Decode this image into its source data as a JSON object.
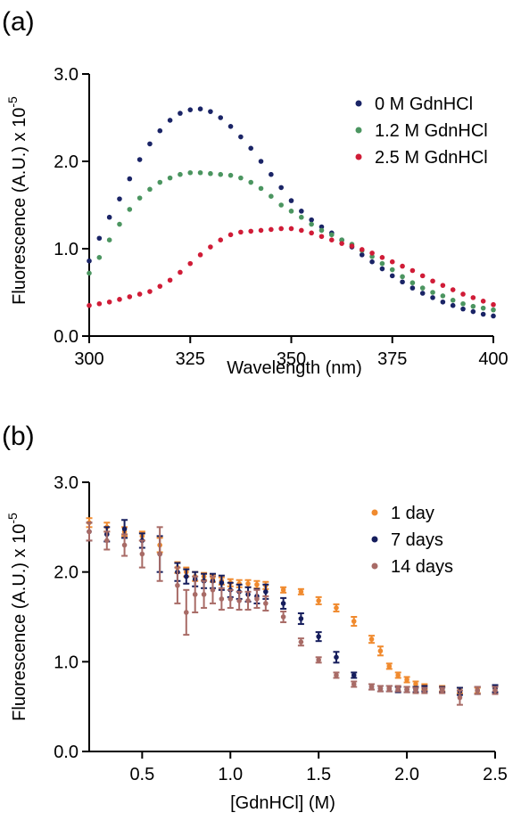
{
  "panels": [
    {
      "label": "(a)"
    },
    {
      "label": "(b)"
    }
  ],
  "chart_data": [
    {
      "type": "scatter",
      "title": "",
      "xlabel": "Wavelength (nm)",
      "ylabel": "Fluorescence (A.U.) x 10",
      "ylabel_exponent": "-5",
      "xlim": [
        300,
        400
      ],
      "ylim": [
        0,
        3
      ],
      "xticks": [
        "300",
        "325",
        "350",
        "375",
        "400"
      ],
      "yticks": [
        "0.0",
        "1.0",
        "2.0",
        "3.0"
      ],
      "legend_position": "top-right",
      "grid": false,
      "series": [
        {
          "name": "0 M GdnHCl",
          "color": "#1a2466",
          "x": [
            300,
            302.5,
            305,
            307.5,
            310,
            312.5,
            315,
            317.5,
            320,
            322.5,
            325,
            327.5,
            330,
            332.5,
            335,
            337.5,
            340,
            342.5,
            345,
            347.5,
            350,
            352.5,
            355,
            357.5,
            360,
            362.5,
            365,
            367.5,
            370,
            372.5,
            375,
            377.5,
            380,
            382.5,
            385,
            387.5,
            390,
            392.5,
            395,
            397.5,
            400
          ],
          "y": [
            0.86,
            1.12,
            1.36,
            1.57,
            1.8,
            2.02,
            2.2,
            2.35,
            2.47,
            2.55,
            2.59,
            2.6,
            2.57,
            2.5,
            2.4,
            2.28,
            2.15,
            2.0,
            1.85,
            1.7,
            1.55,
            1.43,
            1.33,
            1.25,
            1.18,
            1.1,
            1.02,
            0.93,
            0.85,
            0.77,
            0.69,
            0.62,
            0.55,
            0.49,
            0.44,
            0.39,
            0.35,
            0.31,
            0.28,
            0.25,
            0.23
          ]
        },
        {
          "name": "1.2 M GdnHCl",
          "color": "#4b9560",
          "x": [
            300,
            302.5,
            305,
            307.5,
            310,
            312.5,
            315,
            317.5,
            320,
            322.5,
            325,
            327.5,
            330,
            332.5,
            335,
            337.5,
            340,
            342.5,
            345,
            347.5,
            350,
            352.5,
            355,
            357.5,
            360,
            362.5,
            365,
            367.5,
            370,
            372.5,
            375,
            377.5,
            380,
            382.5,
            385,
            387.5,
            390,
            392.5,
            395,
            397.5,
            400
          ],
          "y": [
            0.72,
            0.9,
            1.1,
            1.28,
            1.45,
            1.58,
            1.68,
            1.76,
            1.81,
            1.85,
            1.87,
            1.87,
            1.86,
            1.85,
            1.84,
            1.81,
            1.76,
            1.69,
            1.6,
            1.5,
            1.43,
            1.36,
            1.28,
            1.21,
            1.16,
            1.1,
            1.05,
            0.98,
            0.91,
            0.83,
            0.76,
            0.68,
            0.61,
            0.55,
            0.5,
            0.46,
            0.41,
            0.37,
            0.34,
            0.32,
            0.3
          ]
        },
        {
          "name": "2.5 M GdnHCl",
          "color": "#d01c37",
          "x": [
            300,
            302.5,
            305,
            307.5,
            310,
            312.5,
            315,
            317.5,
            320,
            322.5,
            325,
            327.5,
            330,
            332.5,
            335,
            337.5,
            340,
            342.5,
            345,
            347.5,
            350,
            352.5,
            355,
            357.5,
            360,
            362.5,
            365,
            367.5,
            370,
            372.5,
            375,
            377.5,
            380,
            382.5,
            385,
            387.5,
            390,
            392.5,
            395,
            397.5,
            400
          ],
          "y": [
            0.35,
            0.37,
            0.39,
            0.42,
            0.45,
            0.48,
            0.51,
            0.57,
            0.64,
            0.73,
            0.83,
            0.93,
            1.02,
            1.1,
            1.16,
            1.19,
            1.2,
            1.21,
            1.22,
            1.23,
            1.23,
            1.21,
            1.18,
            1.14,
            1.1,
            1.06,
            1.03,
            0.99,
            0.95,
            0.9,
            0.85,
            0.8,
            0.75,
            0.69,
            0.63,
            0.58,
            0.53,
            0.48,
            0.44,
            0.4,
            0.36
          ]
        }
      ]
    },
    {
      "type": "scatter",
      "title": "",
      "xlabel": "[GdnHCl] (M)",
      "ylabel": "Fluorescence (A.U.) x 10",
      "ylabel_exponent": "-5",
      "xlim": [
        0.2,
        2.5
      ],
      "ylim": [
        0,
        3
      ],
      "xticks": [
        "0.5",
        "1.0",
        "1.5",
        "2.0",
        "2.5"
      ],
      "yticks": [
        "0.0",
        "1.0",
        "2.0",
        "3.0"
      ],
      "legend_position": "top-right",
      "grid": false,
      "series": [
        {
          "name": "1 day",
          "color": "#f08a2e",
          "x": [
            0.2,
            0.3,
            0.4,
            0.5,
            0.6,
            0.7,
            0.75,
            0.8,
            0.85,
            0.9,
            0.95,
            1.0,
            1.05,
            1.1,
            1.15,
            1.2,
            1.3,
            1.4,
            1.5,
            1.6,
            1.7,
            1.8,
            1.85,
            1.9,
            1.95,
            2.0,
            2.05,
            2.1,
            2.2,
            2.3,
            2.4,
            2.5
          ],
          "y": [
            2.55,
            2.5,
            2.45,
            2.4,
            2.3,
            2.05,
            2.0,
            1.95,
            1.95,
            1.93,
            1.9,
            1.88,
            1.87,
            1.87,
            1.86,
            1.85,
            1.8,
            1.78,
            1.68,
            1.6,
            1.45,
            1.25,
            1.12,
            0.95,
            0.85,
            0.8,
            0.75,
            0.72,
            0.7,
            0.68,
            0.68,
            0.7
          ],
          "err": [
            0.05,
            0.05,
            0.05,
            0.05,
            0.08,
            0.06,
            0.05,
            0.05,
            0.04,
            0.04,
            0.04,
            0.04,
            0.04,
            0.04,
            0.04,
            0.04,
            0.03,
            0.03,
            0.04,
            0.04,
            0.05,
            0.04,
            0.05,
            0.03,
            0.03,
            0.03,
            0.03,
            0.03,
            0.03,
            0.03,
            0.03,
            0.04
          ]
        },
        {
          "name": "7 days",
          "color": "#151d5c",
          "x": [
            0.2,
            0.3,
            0.4,
            0.5,
            0.6,
            0.7,
            0.75,
            0.8,
            0.85,
            0.9,
            0.95,
            1.0,
            1.05,
            1.1,
            1.15,
            1.2,
            1.3,
            1.4,
            1.5,
            1.6,
            1.7,
            1.8,
            1.85,
            1.9,
            1.95,
            2.0,
            2.05,
            2.1,
            2.2,
            2.3,
            2.4,
            2.5
          ],
          "y": [
            2.45,
            2.42,
            2.48,
            2.35,
            2.2,
            2.0,
            1.95,
            1.92,
            1.9,
            1.9,
            1.88,
            1.8,
            1.78,
            1.75,
            1.73,
            1.78,
            1.65,
            1.48,
            1.28,
            1.05,
            0.85,
            0.72,
            0.7,
            0.7,
            0.69,
            0.69,
            0.69,
            0.7,
            0.69,
            0.67,
            0.68,
            0.7
          ],
          "err": [
            0.1,
            0.08,
            0.1,
            0.08,
            0.2,
            0.1,
            0.08,
            0.08,
            0.08,
            0.08,
            0.08,
            0.08,
            0.08,
            0.08,
            0.08,
            0.08,
            0.06,
            0.06,
            0.05,
            0.06,
            0.03,
            0.03,
            0.03,
            0.03,
            0.03,
            0.03,
            0.03,
            0.03,
            0.03,
            0.04,
            0.04,
            0.04
          ]
        },
        {
          "name": "14 days",
          "color": "#a86b66",
          "x": [
            0.2,
            0.3,
            0.4,
            0.5,
            0.6,
            0.7,
            0.75,
            0.8,
            0.85,
            0.9,
            0.95,
            1.0,
            1.05,
            1.1,
            1.15,
            1.2,
            1.3,
            1.4,
            1.5,
            1.6,
            1.7,
            1.8,
            1.85,
            1.9,
            1.95,
            2.0,
            2.05,
            2.1,
            2.2,
            2.3,
            2.4,
            2.5
          ],
          "y": [
            2.45,
            2.35,
            2.3,
            2.2,
            2.2,
            1.85,
            1.55,
            1.75,
            1.75,
            1.8,
            1.7,
            1.7,
            1.68,
            1.68,
            1.7,
            1.65,
            1.5,
            1.22,
            1.02,
            0.85,
            0.75,
            0.72,
            0.7,
            0.7,
            0.7,
            0.69,
            0.68,
            0.68,
            0.68,
            0.6,
            0.68,
            0.68
          ],
          "err": [
            0.1,
            0.1,
            0.12,
            0.15,
            0.3,
            0.2,
            0.25,
            0.2,
            0.15,
            0.15,
            0.12,
            0.1,
            0.1,
            0.1,
            0.1,
            0.08,
            0.06,
            0.04,
            0.03,
            0.03,
            0.03,
            0.03,
            0.03,
            0.03,
            0.03,
            0.03,
            0.03,
            0.03,
            0.03,
            0.08,
            0.04,
            0.04
          ]
        }
      ]
    }
  ]
}
